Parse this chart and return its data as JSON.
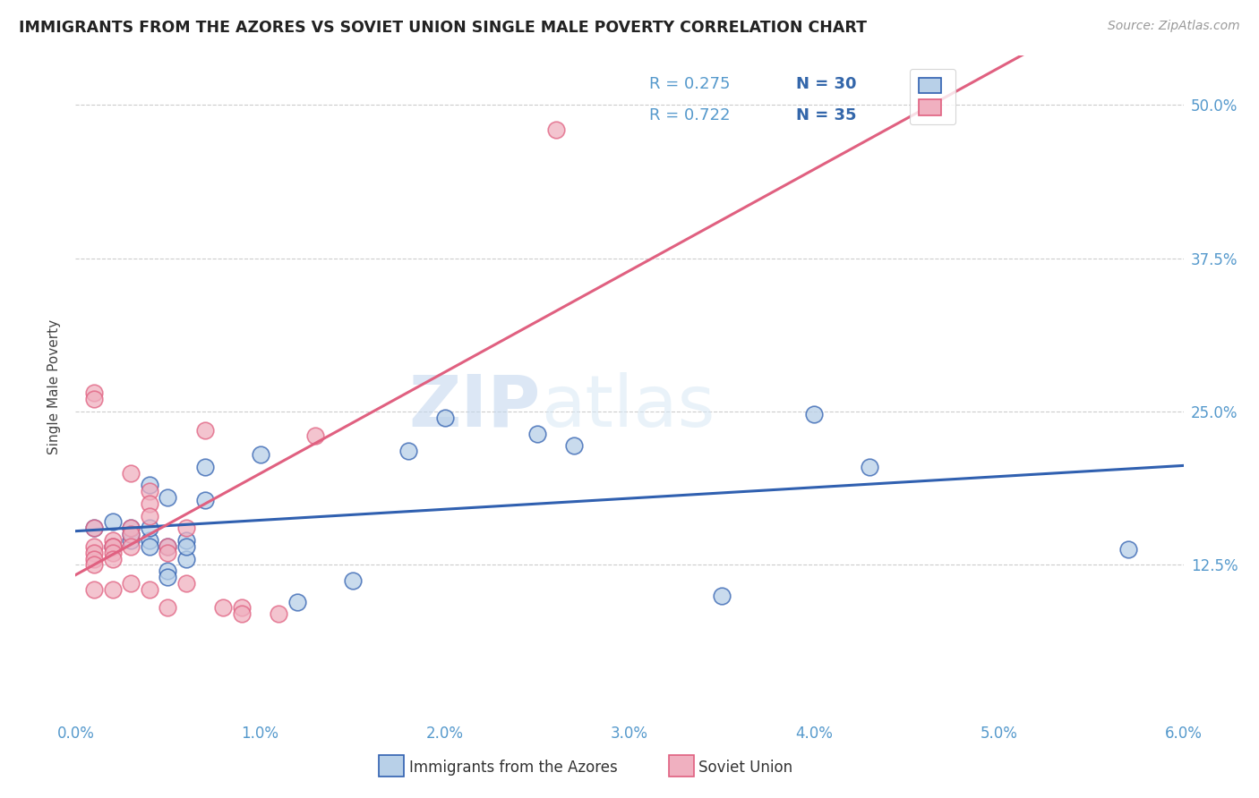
{
  "title": "IMMIGRANTS FROM THE AZORES VS SOVIET UNION SINGLE MALE POVERTY CORRELATION CHART",
  "source": "Source: ZipAtlas.com",
  "ylabel": "Single Male Poverty",
  "legend_labels": [
    "Immigrants from the Azores",
    "Soviet Union"
  ],
  "legend_r": [
    "R = 0.275",
    "R = 0.722"
  ],
  "legend_n": [
    "N = 30",
    "N = 35"
  ],
  "xlim": [
    0.0,
    0.06
  ],
  "ylim": [
    0.0,
    0.54
  ],
  "xtick_labels": [
    "0.0%",
    "1.0%",
    "2.0%",
    "3.0%",
    "4.0%",
    "5.0%",
    "6.0%"
  ],
  "xtick_values": [
    0.0,
    0.01,
    0.02,
    0.03,
    0.04,
    0.05,
    0.06
  ],
  "ytick_labels": [
    "12.5%",
    "25.0%",
    "37.5%",
    "50.0%"
  ],
  "ytick_values": [
    0.125,
    0.25,
    0.375,
    0.5
  ],
  "color_azores": "#b8d0e8",
  "color_soviet": "#f0b0c0",
  "color_azores_line": "#3060b0",
  "color_soviet_line": "#e06080",
  "watermark_zip": "ZIP",
  "watermark_atlas": "atlas",
  "azores_x": [
    0.001,
    0.002,
    0.002,
    0.003,
    0.003,
    0.003,
    0.004,
    0.004,
    0.004,
    0.004,
    0.005,
    0.005,
    0.005,
    0.005,
    0.006,
    0.006,
    0.006,
    0.007,
    0.007,
    0.01,
    0.012,
    0.015,
    0.018,
    0.02,
    0.025,
    0.027,
    0.035,
    0.04,
    0.043,
    0.057
  ],
  "azores_y": [
    0.155,
    0.16,
    0.14,
    0.145,
    0.15,
    0.155,
    0.145,
    0.14,
    0.155,
    0.19,
    0.14,
    0.12,
    0.115,
    0.18,
    0.13,
    0.145,
    0.14,
    0.205,
    0.178,
    0.215,
    0.095,
    0.112,
    0.218,
    0.245,
    0.232,
    0.222,
    0.1,
    0.248,
    0.205,
    0.138
  ],
  "soviet_x": [
    0.001,
    0.001,
    0.001,
    0.001,
    0.001,
    0.001,
    0.001,
    0.001,
    0.002,
    0.002,
    0.002,
    0.002,
    0.002,
    0.002,
    0.003,
    0.003,
    0.003,
    0.003,
    0.003,
    0.004,
    0.004,
    0.004,
    0.004,
    0.005,
    0.005,
    0.005,
    0.006,
    0.006,
    0.007,
    0.008,
    0.009,
    0.009,
    0.011,
    0.013,
    0.026
  ],
  "soviet_y": [
    0.265,
    0.26,
    0.155,
    0.14,
    0.135,
    0.13,
    0.125,
    0.105,
    0.145,
    0.14,
    0.14,
    0.135,
    0.13,
    0.105,
    0.2,
    0.155,
    0.15,
    0.14,
    0.11,
    0.185,
    0.175,
    0.165,
    0.105,
    0.14,
    0.135,
    0.09,
    0.155,
    0.11,
    0.235,
    0.09,
    0.09,
    0.085,
    0.085,
    0.23,
    0.48
  ]
}
